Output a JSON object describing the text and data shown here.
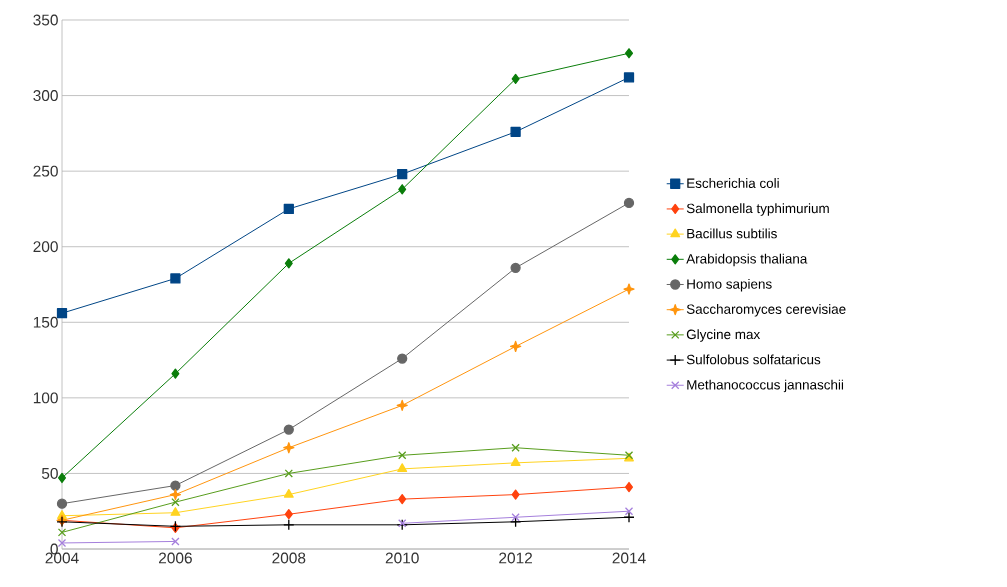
{
  "chart_data": {
    "type": "line",
    "x": [
      2004,
      2006,
      2008,
      2010,
      2012,
      2014
    ],
    "xlim": [
      2004,
      2014
    ],
    "xticks": [
      2004,
      2006,
      2008,
      2010,
      2012,
      2014
    ],
    "ylim": [
      0,
      350
    ],
    "yticks": [
      0,
      50,
      100,
      150,
      200,
      250,
      300,
      350
    ],
    "grid": "y",
    "legend": "right",
    "series": [
      {
        "name": "Escherichia coli",
        "color": "#004586",
        "marker": "square",
        "values": [
          156,
          179,
          225,
          248,
          276,
          312
        ]
      },
      {
        "name": "Salmonella typhimurium",
        "color": "#ff420e",
        "marker": "diamond",
        "values": [
          19,
          14,
          23,
          33,
          36,
          41
        ]
      },
      {
        "name": "Bacillus subtilis",
        "color": "#ffd320",
        "marker": "triangle",
        "values": [
          22,
          24,
          36,
          53,
          57,
          60
        ]
      },
      {
        "name": "Arabidopsis thaliana",
        "color": "#0a7d0a",
        "marker": "diamond",
        "values": [
          47,
          116,
          189,
          238,
          311,
          328
        ]
      },
      {
        "name": "Homo sapiens",
        "color": "#666666",
        "marker": "circle",
        "values": [
          30,
          42,
          79,
          126,
          186,
          229
        ]
      },
      {
        "name": "Saccharomyces cerevisiae",
        "color": "#ff950e",
        "marker": "star",
        "values": [
          19,
          36,
          67,
          95,
          134,
          172
        ]
      },
      {
        "name": "Glycine max",
        "color": "#579d1c",
        "marker": "cross",
        "values": [
          11,
          31,
          50,
          62,
          67,
          62
        ]
      },
      {
        "name": "Sulfolobus solfataricus",
        "color": "#000000",
        "marker": "plus",
        "values": [
          18,
          15,
          16,
          16,
          18,
          21
        ]
      },
      {
        "name": "Methanococcus jannaschii",
        "color": "#a57fdc",
        "marker": "cross",
        "values": [
          4,
          5,
          null,
          17,
          21,
          25
        ]
      }
    ]
  }
}
